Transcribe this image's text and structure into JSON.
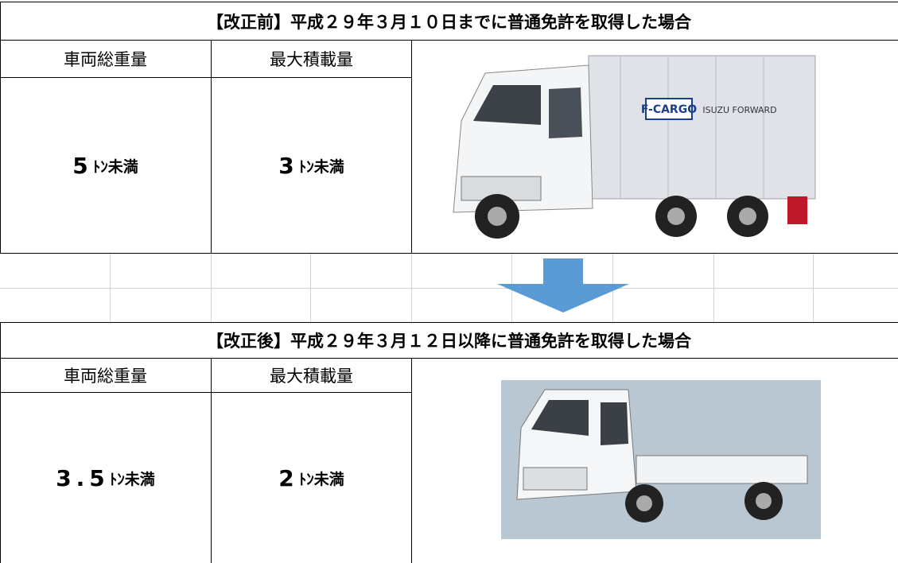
{
  "before": {
    "title": "【改正前】平成２９年３月１０日までに普通免許を取得した場合",
    "headers": [
      "車両総重量",
      "最大積載量"
    ],
    "values": [
      {
        "number": "5",
        "unit": "ﾄﾝ未満"
      },
      {
        "number": "3",
        "unit": "ﾄﾝ未満"
      }
    ],
    "truck_labels": [
      "F-CARGO",
      "ISUZU FORWARD"
    ]
  },
  "after": {
    "title": "【改正後】平成２９年３月１２日以降に普通免許を取得した場合",
    "headers": [
      "車両総重量",
      "最大積載量"
    ],
    "values": [
      {
        "number": "3.5",
        "unit": "ﾄﾝ未満"
      },
      {
        "number": "2",
        "unit": "ﾄﾝ未満"
      }
    ]
  }
}
